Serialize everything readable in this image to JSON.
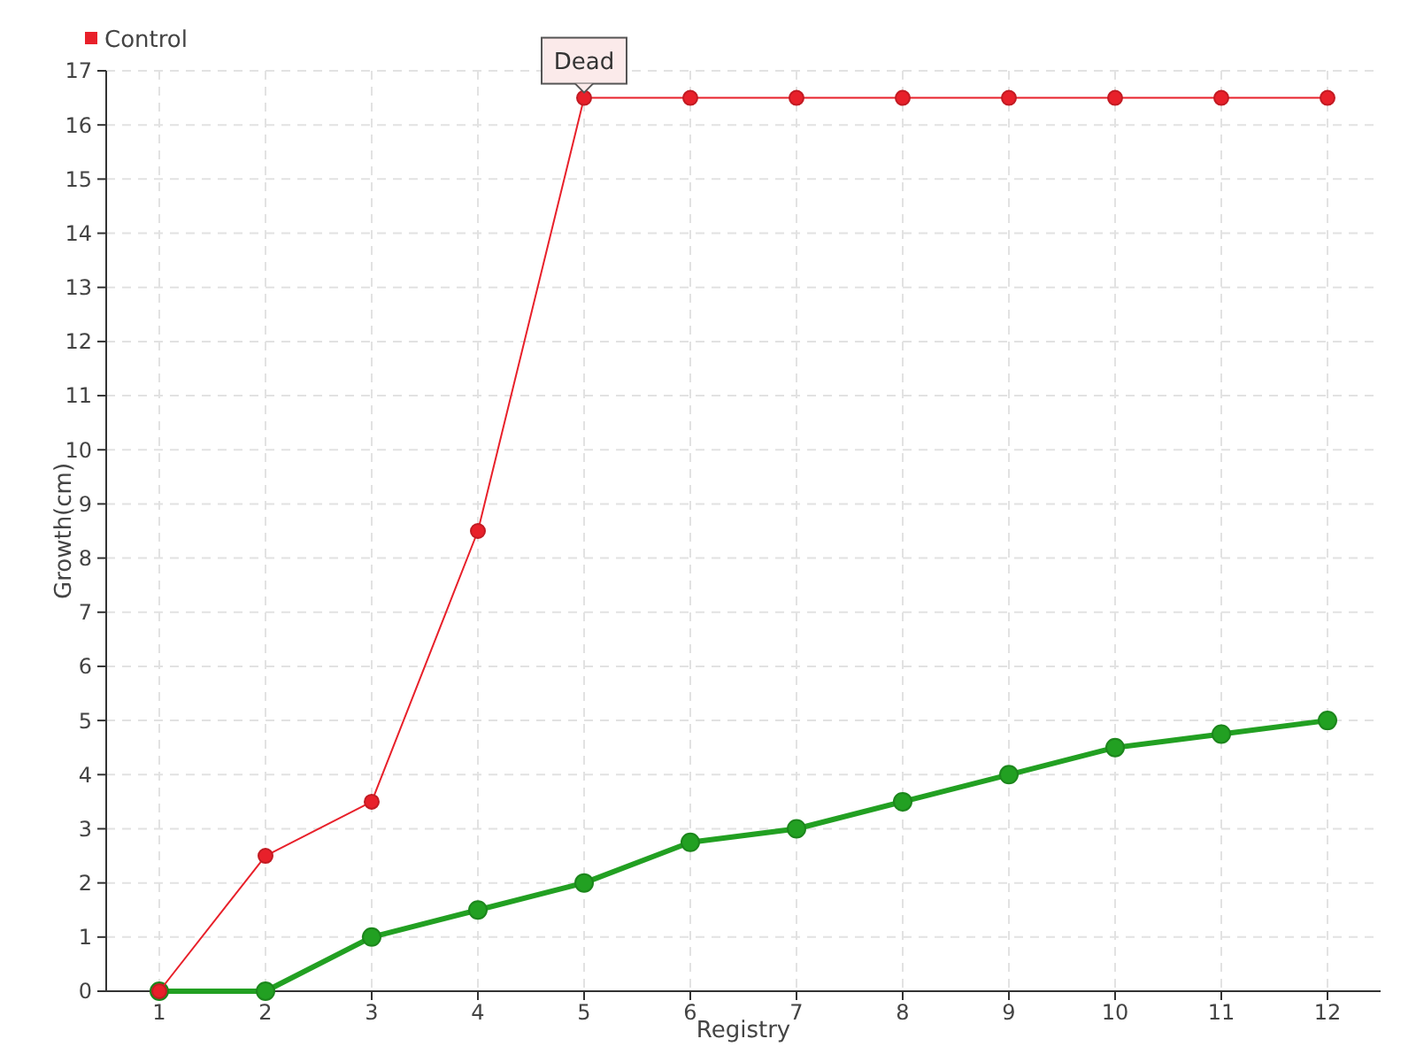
{
  "chart_data": {
    "type": "line",
    "xlabel": "Registry",
    "ylabel": "Growth(cm)",
    "categories": [
      "1",
      "2",
      "3",
      "4",
      "5",
      "6",
      "7",
      "8",
      "9",
      "10",
      "11",
      "12"
    ],
    "series": [
      {
        "color": "#22a022",
        "values": [
          0,
          0,
          1,
          1.5,
          2,
          2.75,
          3,
          3.5,
          4,
          4.5,
          4.75,
          5
        ]
      },
      {
        "name": "Control",
        "color": "#e8202a",
        "values": [
          0,
          2.5,
          3.5,
          8.5,
          16.5,
          16.5,
          16.5,
          16.5,
          16.5,
          16.5,
          16.5,
          16.5
        ]
      }
    ],
    "ylim": [
      0,
      17
    ],
    "yticks": [
      0,
      1,
      2,
      3,
      4,
      5,
      6,
      7,
      8,
      9,
      10,
      11,
      12,
      13,
      14,
      15,
      16,
      17
    ],
    "grid": true,
    "legend": "top left",
    "marker": "circle",
    "line_style": "solid",
    "annotations": [
      {
        "text": "Dead",
        "x": "5",
        "y": 16.5
      }
    ]
  }
}
